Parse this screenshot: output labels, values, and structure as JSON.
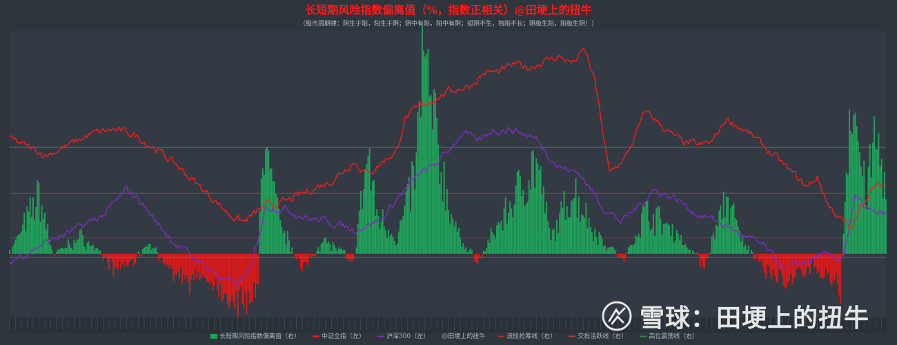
{
  "chart_data": {
    "type": "line+bar",
    "title": "长短期风险指数偏离值（%，指数正相关）@田埂上的扭牛",
    "subtitle": "（股市周期律：阴生于阳，阳生于阴；阴中有阳，阳中有阴；孤阴不生，独阳不长；阴极生阳，阳极生阴！）",
    "x_points": 600,
    "right_axis_range": [
      -40,
      140
    ],
    "ref_lines": [
      {
        "name": "波段抢筹线（右）",
        "value": 10,
        "color": "#b03030"
      },
      {
        "name": "交投活跃线（右）",
        "value": 38,
        "color": "#b04040"
      },
      {
        "name": "高位震荡线（右）",
        "value": 67,
        "color": "#2e8b57"
      }
    ],
    "series": [
      {
        "name": "长短期风险指数偏离值（右）",
        "kind": "bar",
        "color_pos": "#1fa35a",
        "color_neg": "#e01818",
        "keypoints": [
          [
            0,
            0
          ],
          [
            10,
            20
          ],
          [
            20,
            40
          ],
          [
            30,
            0
          ],
          [
            50,
            12
          ],
          [
            70,
            -10
          ],
          [
            85,
            -5
          ],
          [
            95,
            8
          ],
          [
            110,
            -12
          ],
          [
            120,
            -20
          ],
          [
            130,
            -15
          ],
          [
            145,
            -25
          ],
          [
            160,
            -35
          ],
          [
            170,
            -20
          ],
          [
            172,
            80
          ],
          [
            185,
            20
          ],
          [
            200,
            -10
          ],
          [
            215,
            10
          ],
          [
            235,
            -5
          ],
          [
            245,
            70
          ],
          [
            250,
            30
          ],
          [
            265,
            10
          ],
          [
            278,
            60
          ],
          [
            282,
            135
          ],
          [
            295,
            60
          ],
          [
            305,
            15
          ],
          [
            320,
            -5
          ],
          [
            340,
            30
          ],
          [
            360,
            65
          ],
          [
            370,
            10
          ],
          [
            385,
            45
          ],
          [
            400,
            15
          ],
          [
            420,
            -5
          ],
          [
            435,
            30
          ],
          [
            455,
            15
          ],
          [
            475,
            -8
          ],
          [
            490,
            40
          ],
          [
            500,
            10
          ],
          [
            515,
            -10
          ],
          [
            530,
            -20
          ],
          [
            550,
            -8
          ],
          [
            560,
            -15
          ],
          [
            568,
            -25
          ],
          [
            575,
            120
          ],
          [
            585,
            40
          ],
          [
            592,
            80
          ],
          [
            600,
            40
          ]
        ]
      },
      {
        "name": "中证全指（左）",
        "kind": "line",
        "color": "#ff1a1a",
        "keypoints": [
          [
            0,
            72
          ],
          [
            25,
            62
          ],
          [
            40,
            68
          ],
          [
            55,
            75
          ],
          [
            70,
            78
          ],
          [
            85,
            75
          ],
          [
            100,
            66
          ],
          [
            115,
            55
          ],
          [
            130,
            42
          ],
          [
            140,
            34
          ],
          [
            150,
            25
          ],
          [
            160,
            20
          ],
          [
            175,
            30
          ],
          [
            190,
            33
          ],
          [
            205,
            40
          ],
          [
            220,
            46
          ],
          [
            235,
            58
          ],
          [
            245,
            50
          ],
          [
            255,
            58
          ],
          [
            265,
            65
          ],
          [
            270,
            85
          ],
          [
            285,
            95
          ],
          [
            300,
            102
          ],
          [
            315,
            106
          ],
          [
            325,
            114
          ],
          [
            335,
            114
          ],
          [
            345,
            119
          ],
          [
            355,
            117
          ],
          [
            365,
            121
          ],
          [
            375,
            124
          ],
          [
            385,
            120
          ],
          [
            393,
            128
          ],
          [
            400,
            109
          ],
          [
            410,
            50
          ],
          [
            422,
            62
          ],
          [
            435,
            90
          ],
          [
            452,
            75
          ],
          [
            460,
            70
          ],
          [
            472,
            68
          ],
          [
            480,
            70
          ],
          [
            490,
            85
          ],
          [
            505,
            76
          ],
          [
            515,
            68
          ],
          [
            530,
            55
          ],
          [
            545,
            42
          ],
          [
            552,
            48
          ],
          [
            560,
            30
          ],
          [
            575,
            15
          ],
          [
            590,
            44
          ],
          [
            600,
            40
          ]
        ]
      },
      {
        "name": "沪深300（左）",
        "kind": "line",
        "color": "#7b2fbf",
        "keypoints": [
          [
            0,
            -5
          ],
          [
            20,
            5
          ],
          [
            45,
            15
          ],
          [
            65,
            25
          ],
          [
            80,
            40
          ],
          [
            88,
            35
          ],
          [
            100,
            20
          ],
          [
            115,
            5
          ],
          [
            130,
            -5
          ],
          [
            145,
            -15
          ],
          [
            155,
            -20
          ],
          [
            165,
            -10
          ],
          [
            175,
            30
          ],
          [
            190,
            28
          ],
          [
            205,
            22
          ],
          [
            220,
            20
          ],
          [
            235,
            15
          ],
          [
            255,
            22
          ],
          [
            265,
            35
          ],
          [
            280,
            50
          ],
          [
            290,
            55
          ],
          [
            300,
            65
          ],
          [
            310,
            77
          ],
          [
            320,
            70
          ],
          [
            330,
            78
          ],
          [
            345,
            78
          ],
          [
            360,
            72
          ],
          [
            375,
            55
          ],
          [
            390,
            50
          ],
          [
            405,
            30
          ],
          [
            418,
            20
          ],
          [
            430,
            30
          ],
          [
            440,
            40
          ],
          [
            455,
            35
          ],
          [
            470,
            25
          ],
          [
            485,
            20
          ],
          [
            500,
            12
          ],
          [
            515,
            5
          ],
          [
            530,
            -10
          ],
          [
            545,
            -5
          ],
          [
            555,
            0
          ],
          [
            565,
            -5
          ],
          [
            570,
            0
          ],
          [
            578,
            35
          ],
          [
            590,
            25
          ],
          [
            600,
            25
          ]
        ]
      }
    ],
    "legend": [
      {
        "label": "长短期风险指数偏离值（右）",
        "kind": "bar",
        "color": "#1fa35a"
      },
      {
        "label": "中证全指（左）",
        "kind": "line",
        "color": "#ff1a1a"
      },
      {
        "label": "沪深300（左）",
        "kind": "line",
        "color": "#7b2fbf"
      },
      {
        "label": "@田埂上的扭牛",
        "kind": "none",
        "color": "#888888"
      },
      {
        "label": "波段抢筹线（右）",
        "kind": "line",
        "color": "#b03030"
      },
      {
        "label": "交投活跃线（右）",
        "kind": "line",
        "color": "#b04040"
      },
      {
        "label": "高位震荡线（右）",
        "kind": "line",
        "color": "#2e8b57"
      }
    ]
  },
  "watermark": {
    "text": "雪球：田埂上的扭牛",
    "logo_icon": "xueqiu-logo-icon"
  }
}
